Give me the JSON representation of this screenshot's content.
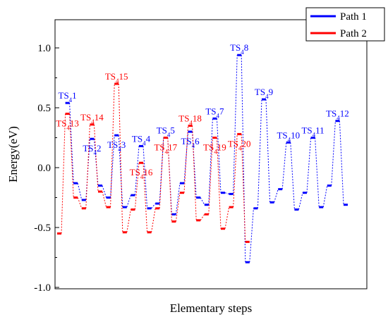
{
  "chart_data": {
    "type": "line",
    "title": "",
    "xlabel": "Elementary steps",
    "ylabel": "Energy(eV)",
    "ylim": [
      -1.0,
      1.0
    ],
    "yticks": [
      -1.0,
      -0.5,
      0.0,
      0.5,
      1.0
    ],
    "ytick_labels": [
      "-1.0",
      "-0.5",
      "0.0",
      "0.5",
      "1.0"
    ],
    "x_tick_labels_shown": false,
    "grid": false,
    "legend_position": "top-right",
    "series": [
      {
        "name": "Path 1",
        "color": "#0000ff",
        "line_style": "dotted",
        "levels": [
          {
            "x": 1,
            "y": 0.54
          },
          {
            "x": 2,
            "y": -0.13
          },
          {
            "x": 3,
            "y": -0.27
          },
          {
            "x": 4,
            "y": 0.24
          },
          {
            "x": 5,
            "y": -0.15
          },
          {
            "x": 6,
            "y": -0.25
          },
          {
            "x": 7,
            "y": 0.27
          },
          {
            "x": 8,
            "y": -0.33
          },
          {
            "x": 9,
            "y": -0.23
          },
          {
            "x": 10,
            "y": 0.18
          },
          {
            "x": 11,
            "y": -0.34
          },
          {
            "x": 12,
            "y": -0.3
          },
          {
            "x": 13,
            "y": 0.25
          },
          {
            "x": 14,
            "y": -0.39
          },
          {
            "x": 15,
            "y": -0.13
          },
          {
            "x": 16,
            "y": 0.3
          },
          {
            "x": 17,
            "y": -0.25
          },
          {
            "x": 18,
            "y": -0.31
          },
          {
            "x": 19,
            "y": 0.41
          },
          {
            "x": 20,
            "y": -0.21
          },
          {
            "x": 21,
            "y": -0.22
          },
          {
            "x": 22,
            "y": 0.94
          },
          {
            "x": 23,
            "y": -0.79
          },
          {
            "x": 24,
            "y": -0.34
          },
          {
            "x": 25,
            "y": 0.57
          },
          {
            "x": 26,
            "y": -0.29
          },
          {
            "x": 27,
            "y": -0.18
          },
          {
            "x": 28,
            "y": 0.21
          },
          {
            "x": 29,
            "y": -0.35
          },
          {
            "x": 30,
            "y": -0.21
          },
          {
            "x": 31,
            "y": 0.25
          },
          {
            "x": 32,
            "y": -0.33
          },
          {
            "x": 33,
            "y": -0.15
          },
          {
            "x": 34,
            "y": 0.39
          },
          {
            "x": 35,
            "y": -0.31
          }
        ]
      },
      {
        "name": "Path 2",
        "color": "#ff0000",
        "line_style": "dotted",
        "levels": [
          {
            "x": 0,
            "y": -0.55
          },
          {
            "x": 1,
            "y": 0.45
          },
          {
            "x": 2,
            "y": -0.25
          },
          {
            "x": 3,
            "y": -0.34
          },
          {
            "x": 4,
            "y": 0.36
          },
          {
            "x": 5,
            "y": -0.2
          },
          {
            "x": 6,
            "y": -0.33
          },
          {
            "x": 7,
            "y": 0.7
          },
          {
            "x": 8,
            "y": -0.54
          },
          {
            "x": 9,
            "y": -0.35
          },
          {
            "x": 10,
            "y": 0.04
          },
          {
            "x": 11,
            "y": -0.54
          },
          {
            "x": 12,
            "y": -0.34
          },
          {
            "x": 13,
            "y": 0.25
          },
          {
            "x": 14,
            "y": -0.45
          },
          {
            "x": 15,
            "y": -0.21
          },
          {
            "x": 16,
            "y": 0.35
          },
          {
            "x": 17,
            "y": -0.44
          },
          {
            "x": 18,
            "y": -0.39
          },
          {
            "x": 19,
            "y": 0.25
          },
          {
            "x": 20,
            "y": -0.51
          },
          {
            "x": 21,
            "y": -0.33
          },
          {
            "x": 22,
            "y": 0.28
          },
          {
            "x": 23,
            "y": -0.62
          }
        ]
      }
    ],
    "annotations": [
      {
        "series": 0,
        "x": 1,
        "label": "1",
        "place": "above"
      },
      {
        "series": 0,
        "x": 4,
        "label": "2",
        "place": "below"
      },
      {
        "series": 0,
        "x": 7,
        "label": "3",
        "place": "below"
      },
      {
        "series": 0,
        "x": 10,
        "label": "4",
        "place": "above"
      },
      {
        "series": 0,
        "x": 13,
        "label": "5",
        "place": "above"
      },
      {
        "series": 0,
        "x": 16,
        "label": "6",
        "place": "below"
      },
      {
        "series": 0,
        "x": 19,
        "label": "7",
        "place": "above"
      },
      {
        "series": 0,
        "x": 22,
        "label": "8",
        "place": "above"
      },
      {
        "series": 0,
        "x": 25,
        "label": "9",
        "place": "above"
      },
      {
        "series": 0,
        "x": 28,
        "label": "10",
        "place": "above"
      },
      {
        "series": 0,
        "x": 31,
        "label": "11",
        "place": "above"
      },
      {
        "series": 0,
        "x": 34,
        "label": "12",
        "place": "above"
      },
      {
        "series": 1,
        "x": 1,
        "label": "13",
        "place": "below"
      },
      {
        "series": 1,
        "x": 4,
        "label": "14",
        "place": "above"
      },
      {
        "series": 1,
        "x": 7,
        "label": "15",
        "place": "above"
      },
      {
        "series": 1,
        "x": 10,
        "label": "16",
        "place": "below"
      },
      {
        "series": 1,
        "x": 13,
        "label": "17",
        "place": "below"
      },
      {
        "series": 1,
        "x": 16,
        "label": "18",
        "place": "above"
      },
      {
        "series": 1,
        "x": 19,
        "label": "19",
        "place": "below"
      },
      {
        "series": 1,
        "x": 22,
        "label": "20",
        "place": "below"
      }
    ],
    "annotation_prefix": "TS",
    "annotation_subscript": "4"
  }
}
